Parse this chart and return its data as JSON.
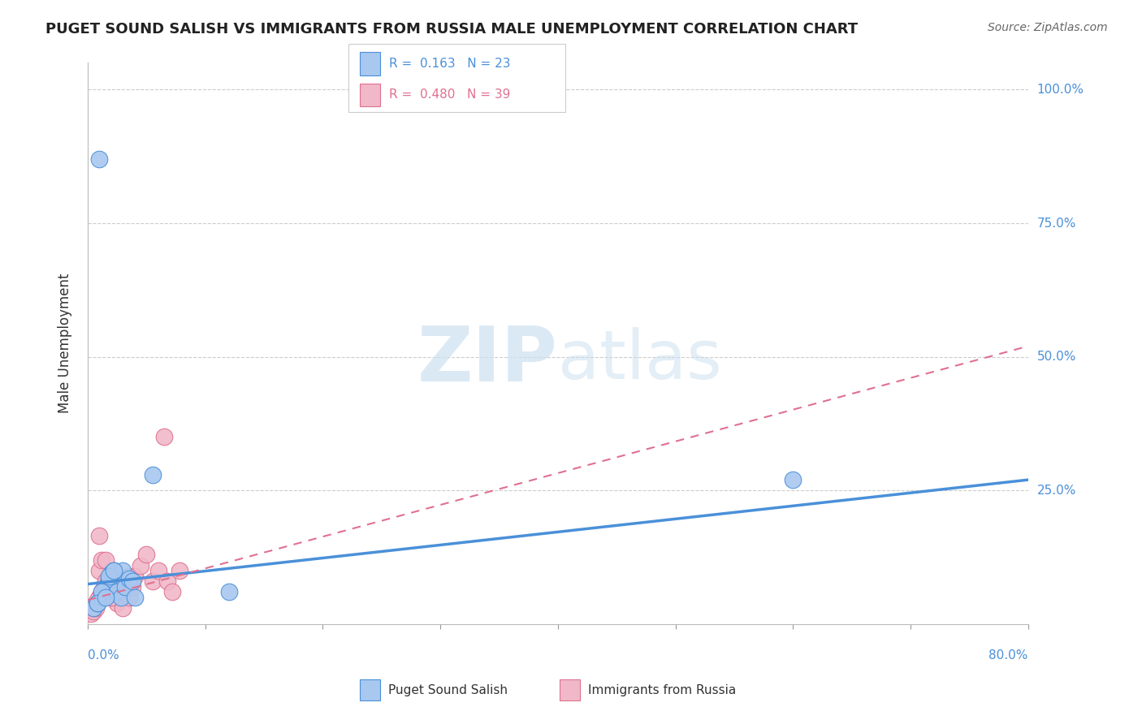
{
  "title": "PUGET SOUND SALISH VS IMMIGRANTS FROM RUSSIA MALE UNEMPLOYMENT CORRELATION CHART",
  "source": "Source: ZipAtlas.com",
  "ylabel": "Male Unemployment",
  "xlim": [
    0.0,
    0.8
  ],
  "ylim": [
    0.0,
    1.05
  ],
  "blue_color": "#a8c8f0",
  "pink_color": "#f0b8c8",
  "blue_line_color": "#4a90d9",
  "pink_line_color": "#e07090",
  "background_color": "#ffffff",
  "grid_color": "#cccccc",
  "watermark_color": "#cce0f0",
  "blue_scatter_x": [
    0.01,
    0.005,
    0.008,
    0.012,
    0.015,
    0.018,
    0.02,
    0.022,
    0.025,
    0.028,
    0.03,
    0.032,
    0.035,
    0.038,
    0.04,
    0.012,
    0.018,
    0.008,
    0.022,
    0.015,
    0.055,
    0.6,
    0.12
  ],
  "blue_scatter_y": [
    0.87,
    0.03,
    0.04,
    0.05,
    0.07,
    0.085,
    0.095,
    0.1,
    0.06,
    0.05,
    0.1,
    0.07,
    0.085,
    0.08,
    0.05,
    0.06,
    0.09,
    0.04,
    0.1,
    0.05,
    0.28,
    0.27,
    0.06
  ],
  "pink_scatter_x": [
    0.003,
    0.005,
    0.007,
    0.008,
    0.01,
    0.012,
    0.014,
    0.015,
    0.018,
    0.02,
    0.022,
    0.025,
    0.028,
    0.03,
    0.035,
    0.005,
    0.008,
    0.01,
    0.012,
    0.015,
    0.018,
    0.02,
    0.025,
    0.03,
    0.035,
    0.038,
    0.04,
    0.045,
    0.05,
    0.055,
    0.06,
    0.065,
    0.068,
    0.072,
    0.078,
    0.01,
    0.015,
    0.005,
    0.02
  ],
  "pink_scatter_y": [
    0.02,
    0.025,
    0.03,
    0.04,
    0.05,
    0.06,
    0.07,
    0.08,
    0.09,
    0.095,
    0.1,
    0.06,
    0.08,
    0.07,
    0.09,
    0.035,
    0.045,
    0.1,
    0.12,
    0.08,
    0.06,
    0.05,
    0.04,
    0.03,
    0.05,
    0.07,
    0.09,
    0.11,
    0.13,
    0.08,
    0.1,
    0.35,
    0.08,
    0.06,
    0.1,
    0.165,
    0.12,
    0.03,
    0.05
  ],
  "blue_line_x0": 0.0,
  "blue_line_y0": 0.075,
  "blue_line_x1": 0.8,
  "blue_line_y1": 0.27,
  "pink_line_x0": 0.0,
  "pink_line_y0": 0.045,
  "pink_line_x1": 0.8,
  "pink_line_y1": 0.52,
  "ytick_positions": [
    0.25,
    0.5,
    0.75,
    1.0
  ],
  "ytick_labels": [
    "25.0%",
    "50.0%",
    "75.0%",
    "100.0%"
  ],
  "xtick_positions": [
    0.0,
    0.1,
    0.2,
    0.3,
    0.4,
    0.5,
    0.6,
    0.7,
    0.8
  ]
}
